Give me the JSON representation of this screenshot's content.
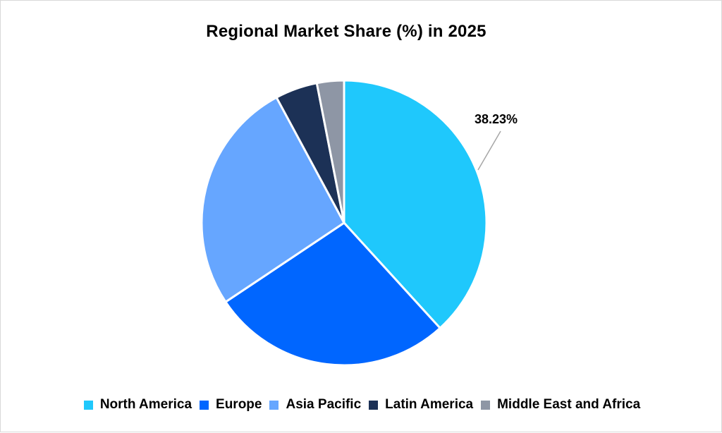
{
  "chart_data": {
    "type": "pie",
    "title": "Regional Market Share (%) in 2025",
    "categories": [
      "North America",
      "Europe",
      "Asia Pacific",
      "Latin America",
      "Middle East and Africa"
    ],
    "values": [
      38.23,
      27.4,
      26.5,
      4.8,
      3.07
    ],
    "colors": [
      "#1fc8fc",
      "#0066ff",
      "#66a6ff",
      "#1c3156",
      "#8e96a5"
    ],
    "data_labels": [
      {
        "category": "North America",
        "text": "38.23%"
      }
    ],
    "legend_position": "bottom",
    "start_angle_deg": 0,
    "direction": "clockwise"
  },
  "legend": {
    "items": [
      {
        "label": "North America",
        "color": "#1fc8fc"
      },
      {
        "label": "Europe",
        "color": "#0066ff"
      },
      {
        "label": "Asia Pacific",
        "color": "#66a6ff"
      },
      {
        "label": "Latin America",
        "color": "#1c3156"
      },
      {
        "label": "Middle East and Africa",
        "color": "#8e96a5"
      }
    ]
  }
}
